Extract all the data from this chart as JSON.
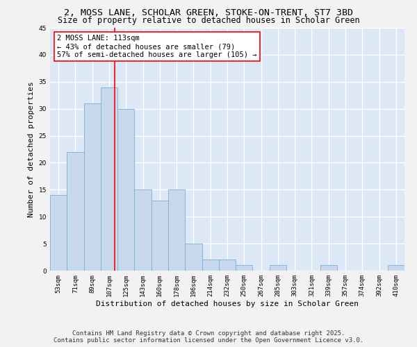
{
  "title": "2, MOSS LANE, SCHOLAR GREEN, STOKE-ON-TRENT, ST7 3BD",
  "subtitle": "Size of property relative to detached houses in Scholar Green",
  "xlabel": "Distribution of detached houses by size in Scholar Green",
  "ylabel": "Number of detached properties",
  "bar_color": "#c9d9ed",
  "bar_edge_color": "#7aadd4",
  "background_color": "#dce8f5",
  "grid_color": "#ffffff",
  "fig_background": "#f2f2f2",
  "categories": [
    "53sqm",
    "71sqm",
    "89sqm",
    "107sqm",
    "125sqm",
    "143sqm",
    "160sqm",
    "178sqm",
    "196sqm",
    "214sqm",
    "232sqm",
    "250sqm",
    "267sqm",
    "285sqm",
    "303sqm",
    "321sqm",
    "339sqm",
    "357sqm",
    "374sqm",
    "392sqm",
    "410sqm"
  ],
  "values": [
    14,
    22,
    31,
    34,
    30,
    15,
    13,
    15,
    5,
    2,
    2,
    1,
    0,
    1,
    0,
    0,
    1,
    0,
    0,
    0,
    1
  ],
  "annotation_line1": "2 MOSS LANE: 113sqm",
  "annotation_line2": "← 43% of detached houses are smaller (79)",
  "annotation_line3": "57% of semi-detached houses are larger (105) →",
  "ylim": [
    0,
    45
  ],
  "yticks": [
    0,
    5,
    10,
    15,
    20,
    25,
    30,
    35,
    40,
    45
  ],
  "footer_line1": "Contains HM Land Registry data © Crown copyright and database right 2025.",
  "footer_line2": "Contains public sector information licensed under the Open Government Licence v3.0.",
  "title_fontsize": 9.5,
  "subtitle_fontsize": 8.5,
  "axis_label_fontsize": 8,
  "tick_fontsize": 6.5,
  "annotation_fontsize": 7.5,
  "footer_fontsize": 6.5
}
